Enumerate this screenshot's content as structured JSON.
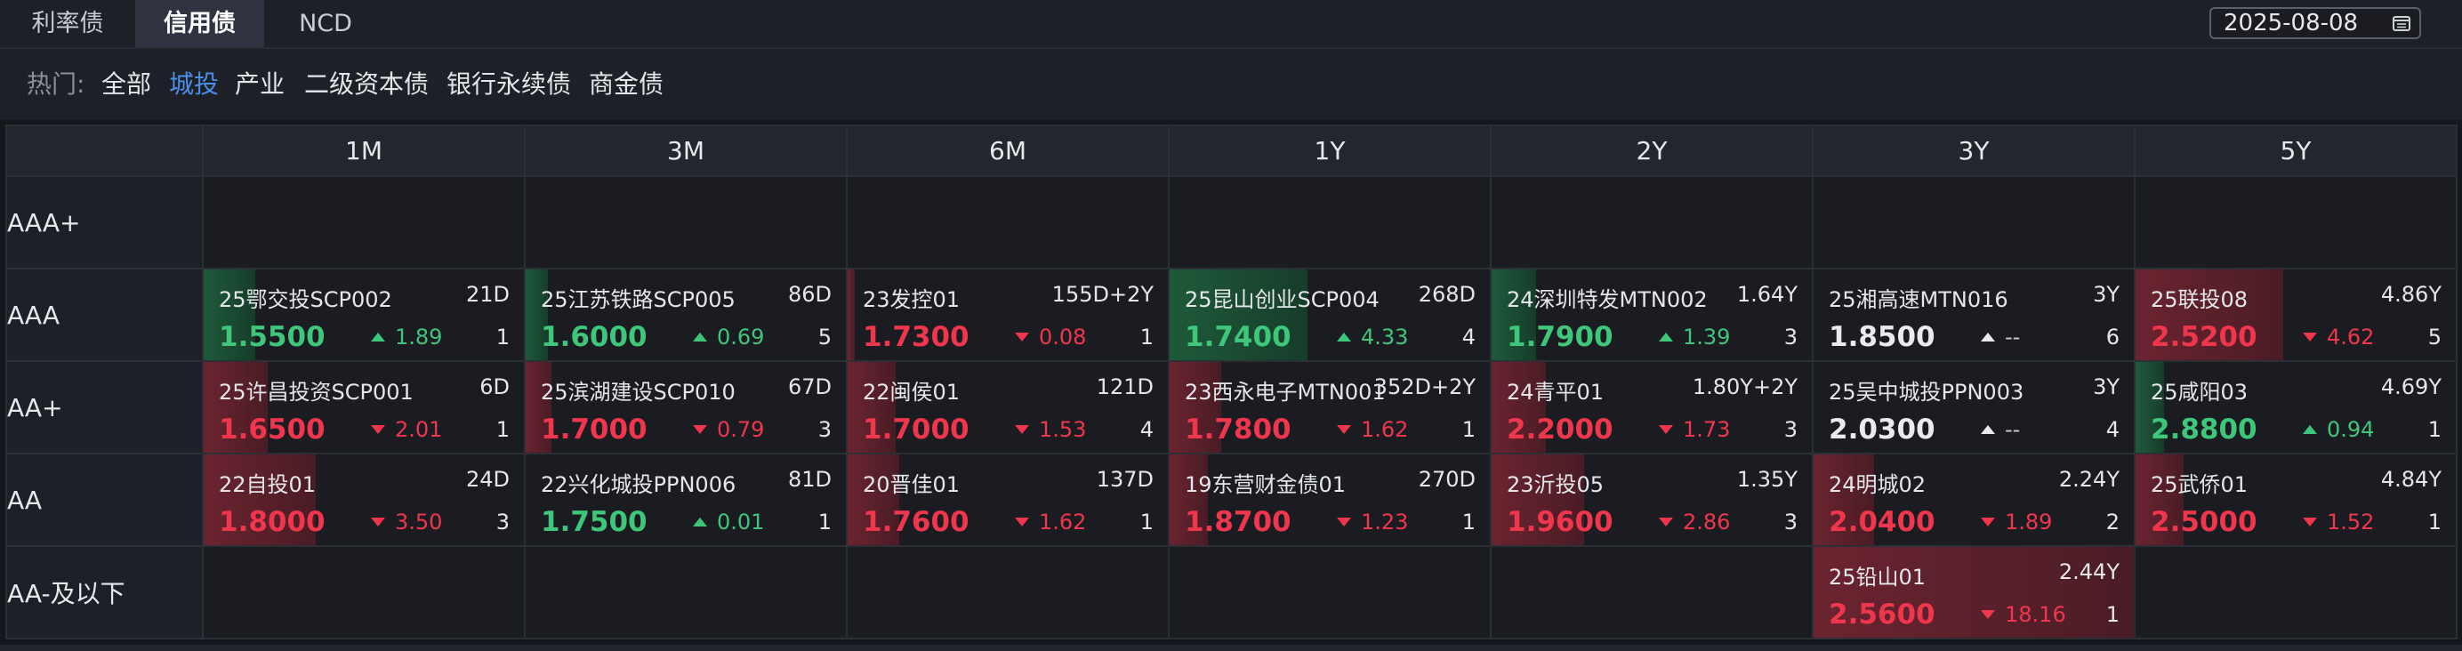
{
  "tabs": [
    {
      "label": "利率债",
      "active": false
    },
    {
      "label": "信用债",
      "active": true
    },
    {
      "label": "NCD",
      "active": false
    }
  ],
  "date": "2025-08-08",
  "filters": {
    "label": "热门:",
    "items": [
      {
        "label": "全部",
        "active": false
      },
      {
        "label": "城投",
        "active": true
      },
      {
        "label": "产业",
        "active": false
      },
      {
        "label": "二级资本债",
        "active": false
      },
      {
        "label": "银行永续债",
        "active": false
      },
      {
        "label": "商金债",
        "active": false
      }
    ]
  },
  "colors": {
    "up": "#3ec77a",
    "down": "#f0364d",
    "accent": "#4a8fe8"
  },
  "columns": [
    "1M",
    "3M",
    "6M",
    "1Y",
    "2Y",
    "3Y",
    "5Y"
  ],
  "rows": [
    {
      "label": "AAA+",
      "cells": [
        null,
        null,
        null,
        null,
        null,
        null,
        null
      ]
    },
    {
      "label": "AAA",
      "cells": [
        {
          "name": "25鄂交投SCP002",
          "tenor": "21D",
          "yield": "1.5500",
          "dir": "up",
          "change": "1.89",
          "count": "1",
          "level": 0.16
        },
        {
          "name": "25江苏铁路SCP005",
          "tenor": "86D",
          "yield": "1.6000",
          "dir": "up",
          "change": "0.69",
          "count": "5",
          "level": 0.07
        },
        {
          "name": "23发控01",
          "tenor": "155D+2Y",
          "yield": "1.7300",
          "dir": "down",
          "change": "0.08",
          "count": "1",
          "level": 0.02
        },
        {
          "name": "25昆山创业SCP004",
          "tenor": "268D",
          "yield": "1.7400",
          "dir": "up",
          "change": "4.33",
          "count": "4",
          "level": 0.43
        },
        {
          "name": "24深圳特发MTN002",
          "tenor": "1.64Y",
          "yield": "1.7900",
          "dir": "up",
          "change": "1.39",
          "count": "3",
          "level": 0.14
        },
        {
          "name": "25湘高速MTN016",
          "tenor": "3Y",
          "yield": "1.8500",
          "dir": "none",
          "change": "--",
          "count": "6",
          "level": 0
        },
        {
          "name": "25联投08",
          "tenor": "4.86Y",
          "yield": "2.5200",
          "dir": "down",
          "change": "4.62",
          "count": "5",
          "level": 0.46
        }
      ]
    },
    {
      "label": "AA+",
      "cells": [
        {
          "name": "25许昌投资SCP001",
          "tenor": "6D",
          "yield": "1.6500",
          "dir": "down",
          "change": "2.01",
          "count": "1",
          "level": 0.2
        },
        {
          "name": "25滨湖建设SCP010",
          "tenor": "67D",
          "yield": "1.7000",
          "dir": "down",
          "change": "0.79",
          "count": "3",
          "level": 0.08
        },
        {
          "name": "22闽侯01",
          "tenor": "121D",
          "yield": "1.7000",
          "dir": "down",
          "change": "1.53",
          "count": "4",
          "level": 0.15
        },
        {
          "name": "23西永电子MTN001",
          "tenor": "352D+2Y",
          "yield": "1.7800",
          "dir": "down",
          "change": "1.62",
          "count": "1",
          "level": 0.16
        },
        {
          "name": "24青平01",
          "tenor": "1.80Y+2Y",
          "yield": "2.2000",
          "dir": "down",
          "change": "1.73",
          "count": "3",
          "level": 0.17
        },
        {
          "name": "25吴中城投PPN003",
          "tenor": "3Y",
          "yield": "2.0300",
          "dir": "none",
          "change": "--",
          "count": "4",
          "level": 0
        },
        {
          "name": "25咸阳03",
          "tenor": "4.69Y",
          "yield": "2.8800",
          "dir": "up",
          "change": "0.94",
          "count": "1",
          "level": 0.09
        }
      ]
    },
    {
      "label": "AA",
      "cells": [
        {
          "name": "22自投01",
          "tenor": "24D",
          "yield": "1.8000",
          "dir": "down",
          "change": "3.50",
          "count": "3",
          "level": 0.35
        },
        {
          "name": "22兴化城投PPN006",
          "tenor": "81D",
          "yield": "1.7500",
          "dir": "up",
          "change": "0.01",
          "count": "1",
          "level": 0
        },
        {
          "name": "20晋佳01",
          "tenor": "137D",
          "yield": "1.7600",
          "dir": "down",
          "change": "1.62",
          "count": "1",
          "level": 0.16
        },
        {
          "name": "19东营财金债01",
          "tenor": "270D",
          "yield": "1.8700",
          "dir": "down",
          "change": "1.23",
          "count": "1",
          "level": 0.12
        },
        {
          "name": "23沂投05",
          "tenor": "1.35Y",
          "yield": "1.9600",
          "dir": "down",
          "change": "2.86",
          "count": "3",
          "level": 0.29
        },
        {
          "name": "24明城02",
          "tenor": "2.24Y",
          "yield": "2.0400",
          "dir": "down",
          "change": "1.89",
          "count": "2",
          "level": 0.19
        },
        {
          "name": "25武侨01",
          "tenor": "4.84Y",
          "yield": "2.5000",
          "dir": "down",
          "change": "1.52",
          "count": "1",
          "level": 0.15
        }
      ]
    },
    {
      "label": "AA-及以下",
      "cells": [
        null,
        null,
        null,
        null,
        null,
        {
          "name": "25铅山01",
          "tenor": "2.44Y",
          "yield": "2.5600",
          "dir": "down",
          "change": "18.16",
          "count": "1",
          "level": 1.0
        },
        null
      ]
    }
  ]
}
